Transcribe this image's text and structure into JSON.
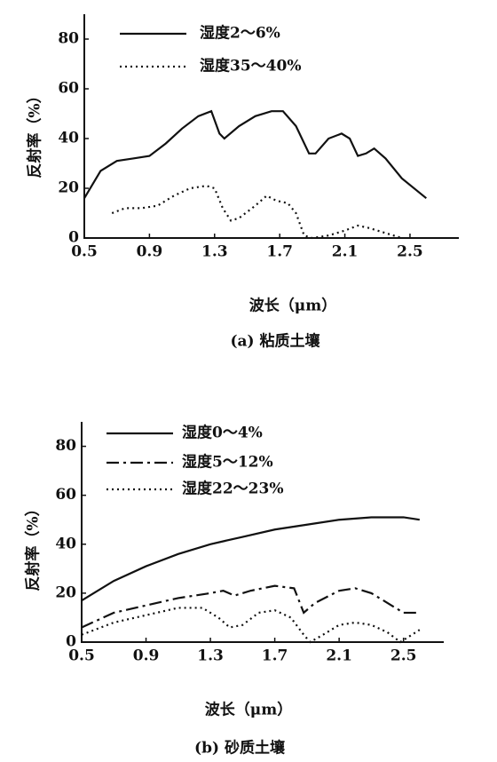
{
  "chart_data": [
    {
      "type": "line",
      "y_label": "反射率（%）",
      "x_label": "波长（μm）",
      "caption": "(a) 粘质土壤",
      "xlim": [
        0.5,
        2.8
      ],
      "ylim": [
        0,
        90
      ],
      "xticks": [
        0.5,
        0.9,
        1.3,
        1.7,
        2.1,
        2.5
      ],
      "yticks": [
        0,
        20,
        40,
        60,
        80
      ],
      "series": [
        {
          "name": "湿度2～6%",
          "color": "#111111",
          "style": "solid",
          "x": [
            0.5,
            0.6,
            0.7,
            0.8,
            0.9,
            1.0,
            1.1,
            1.2,
            1.28,
            1.33,
            1.36,
            1.45,
            1.55,
            1.65,
            1.72,
            1.8,
            1.88,
            1.92,
            2.0,
            2.08,
            2.13,
            2.18,
            2.23,
            2.28,
            2.35,
            2.45,
            2.6
          ],
          "values": [
            16,
            27,
            31,
            32,
            33,
            38,
            44,
            49,
            51,
            42,
            40,
            45,
            49,
            51,
            51,
            45,
            34,
            34,
            40,
            42,
            40,
            33,
            34,
            36,
            32,
            24,
            16
          ]
        },
        {
          "name": "湿度35～40%",
          "color": "#111111",
          "style": "dotted",
          "x": [
            0.67,
            0.75,
            0.85,
            0.95,
            1.05,
            1.15,
            1.25,
            1.3,
            1.35,
            1.4,
            1.45,
            1.55,
            1.62,
            1.68,
            1.75,
            1.8,
            1.85,
            1.9,
            2.0,
            2.1,
            2.18,
            2.25,
            2.35,
            2.45
          ],
          "values": [
            10,
            12,
            12,
            13,
            17,
            20,
            21,
            20,
            12,
            7,
            8,
            13,
            17,
            15,
            14,
            10,
            1,
            0,
            1,
            3,
            5,
            4,
            2,
            0
          ]
        }
      ]
    },
    {
      "type": "line",
      "y_label": "反射率（%）",
      "x_label": "波长（μm）",
      "caption": "(b) 砂质土壤",
      "xlim": [
        0.5,
        2.75
      ],
      "ylim": [
        0,
        90
      ],
      "xticks": [
        0.5,
        0.9,
        1.3,
        1.7,
        2.1,
        2.5
      ],
      "yticks": [
        0,
        20,
        40,
        60,
        80
      ],
      "series": [
        {
          "name": "湿度0～4%",
          "color": "#111111",
          "style": "solid",
          "x": [
            0.5,
            0.7,
            0.9,
            1.1,
            1.3,
            1.5,
            1.7,
            1.9,
            2.1,
            2.3,
            2.5,
            2.6
          ],
          "values": [
            17,
            25,
            31,
            36,
            40,
            43,
            46,
            48,
            50,
            51,
            51,
            50
          ]
        },
        {
          "name": "湿度5～12%",
          "color": "#111111",
          "style": "dashdot",
          "x": [
            0.5,
            0.7,
            0.9,
            1.1,
            1.3,
            1.38,
            1.45,
            1.55,
            1.7,
            1.82,
            1.88,
            1.95,
            2.1,
            2.2,
            2.3,
            2.45,
            2.5,
            2.6
          ],
          "values": [
            6,
            12,
            15,
            18,
            20,
            21,
            19,
            21,
            23,
            22,
            12,
            16,
            21,
            22,
            20,
            14,
            12,
            12
          ]
        },
        {
          "name": "湿度22～23%",
          "color": "#111111",
          "style": "dotted",
          "x": [
            0.5,
            0.7,
            0.9,
            1.1,
            1.25,
            1.35,
            1.42,
            1.5,
            1.6,
            1.7,
            1.8,
            1.88,
            1.92,
            2.0,
            2.1,
            2.2,
            2.3,
            2.4,
            2.48,
            2.6
          ],
          "values": [
            3,
            8,
            11,
            14,
            14,
            10,
            6,
            7,
            12,
            13,
            10,
            3,
            0,
            3,
            7,
            8,
            7,
            4,
            0,
            5
          ]
        }
      ]
    }
  ]
}
